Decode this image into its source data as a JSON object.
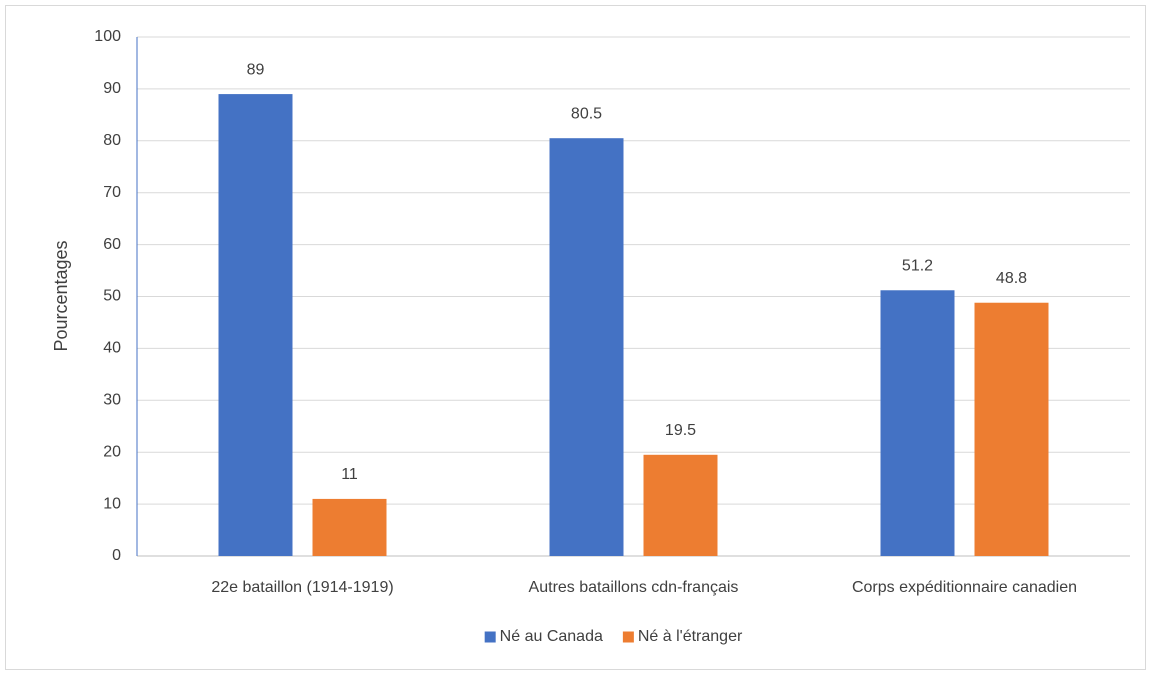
{
  "chart_data": {
    "type": "bar",
    "categories": [
      "22e bataillon (1914-1919)",
      "Autres bataillons cdn-français",
      "Corps expéditionnaire canadien"
    ],
    "series": [
      {
        "name": "Né au Canada",
        "color": "#4472c4",
        "values": [
          89,
          80.5,
          51.2
        ]
      },
      {
        "name": "Né à l'étranger",
        "color": "#ed7d31",
        "values": [
          11,
          19.5,
          48.8
        ]
      }
    ],
    "ylabel": "Pourcentages",
    "ylim": [
      0,
      100
    ],
    "yticks": [
      0,
      10,
      20,
      30,
      40,
      50,
      60,
      70,
      80,
      90,
      100
    ],
    "grid": true,
    "legend": "bottom"
  }
}
